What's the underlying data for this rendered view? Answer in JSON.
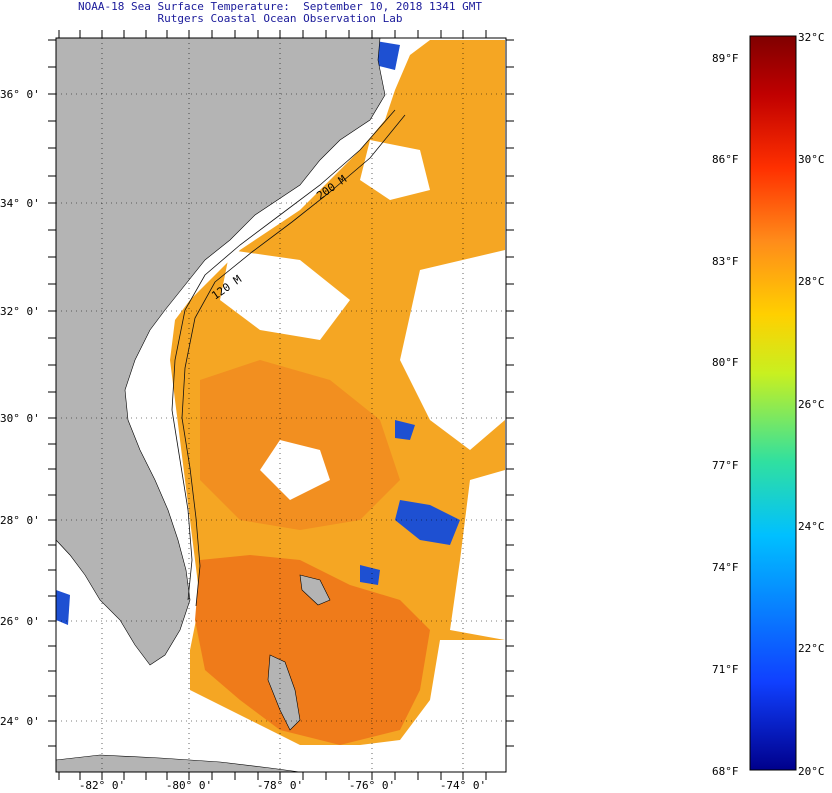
{
  "title": {
    "line1": "NOAA-18 Sea Surface Temperature:  September 10, 2018 1341 GMT",
    "line2": "Rutgers Coastal Ocean Observation Lab"
  },
  "map": {
    "lat_labels": [
      "36° 0'",
      "34° 0'",
      "32° 0'",
      "30° 0'",
      "28° 0'",
      "26° 0'",
      "24° 0'"
    ],
    "lon_labels": [
      "-82° 0'",
      "-80° 0'",
      "-78° 0'",
      "-76° 0'",
      "-74° 0'"
    ],
    "isobath_labels": [
      "120 M",
      "200 M"
    ],
    "colors": {
      "land": "#b4b4b4",
      "ocean_warm": "#f5a623",
      "ocean_hot": "#f07a1a",
      "cloud": "#ffffff",
      "cool": "#1e50d2"
    }
  },
  "colorbar": {
    "fahrenheit_labels": [
      "89°F",
      "86°F",
      "83°F",
      "80°F",
      "77°F",
      "74°F",
      "71°F",
      "68°F"
    ],
    "celsius_labels": [
      "32°C",
      "30°C",
      "28°C",
      "26°C",
      "24°C",
      "22°C",
      "20°C"
    ],
    "range_celsius": [
      20,
      32
    ],
    "stops": [
      "#00008b",
      "#1040ff",
      "#00c0ff",
      "#30e0a0",
      "#c8f020",
      "#ffd000",
      "#ff8c1a",
      "#ff3000",
      "#c00000",
      "#800000"
    ]
  }
}
